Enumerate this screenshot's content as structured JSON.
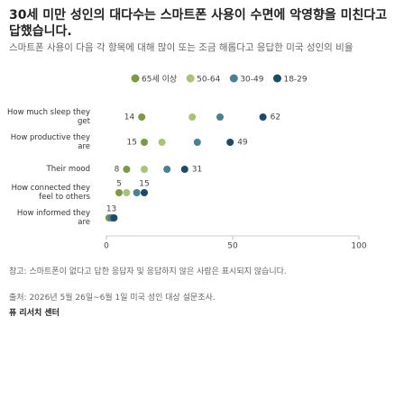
{
  "chart_data": {
    "type": "dot",
    "title": "30세 미만 성인의 대다수는 스마트폰 사용이 수면에 악영향을 미친다고 답했습니다.",
    "subtitle": "스마트폰 사용이 다음 각 항목에 대해 많이 또는 조금 해롭다고 응답한 미국 성인의 비율",
    "categories": [
      "How much sleep they get",
      "How productive they are",
      "Their mood",
      "How connected they feel to others",
      "How informed they are"
    ],
    "series": [
      {
        "name": "65세 이상",
        "color": "#7a9a45",
        "values": [
          14,
          15,
          8,
          5,
          1
        ]
      },
      {
        "name": "50-64",
        "color": "#a9c476",
        "values": [
          34,
          22,
          15,
          8,
          2
        ]
      },
      {
        "name": "30-49",
        "color": "#4d7f92",
        "values": [
          45,
          36,
          24,
          12,
          2
        ]
      },
      {
        "name": "18-29",
        "color": "#1d4a66",
        "values": [
          62,
          49,
          31,
          15,
          3
        ]
      }
    ],
    "xlim": [
      0,
      100
    ],
    "xticks": [
      0,
      50,
      100
    ],
    "note": "참고: 스마트폰이 없다고 답한 응답자 및 응답하지 않은 사람은 표시되지 않습니다.",
    "source": "출처: 2026년 5월 26일~6월 1일 미국 성인 대상 설문조사.",
    "footer": "퓨 리서치 센터"
  }
}
